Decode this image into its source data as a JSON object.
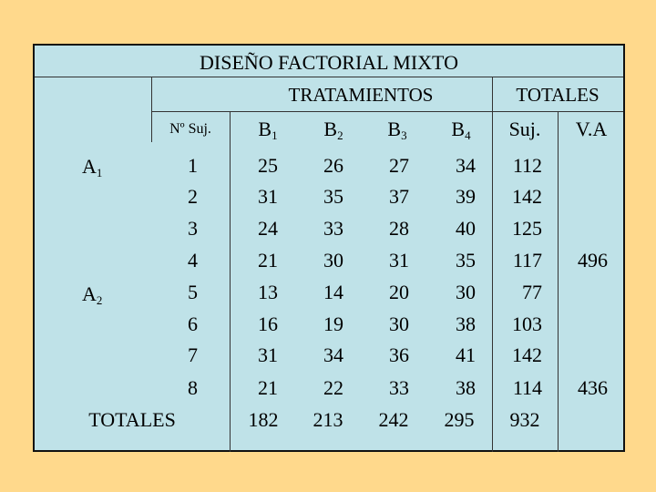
{
  "title": "DISEÑO FACTORIAL MIXTO",
  "group_header": "TRATAMIENTOS",
  "totals_header": "TOTALES",
  "subject_col_label": "Nº Suj.",
  "treatments": [
    {
      "base": "B",
      "sub": "1"
    },
    {
      "base": "B",
      "sub": "2"
    },
    {
      "base": "B",
      "sub": "3"
    },
    {
      "base": "B",
      "sub": "4"
    }
  ],
  "totals_cols": [
    "Suj.",
    "V.A"
  ],
  "groups": [
    {
      "base": "A",
      "sub": "1"
    },
    {
      "base": "A",
      "sub": "2"
    }
  ],
  "rows": [
    {
      "subject": "1",
      "b": [
        "25",
        "26",
        "27",
        "34"
      ],
      "suj": "112",
      "va": ""
    },
    {
      "subject": "2",
      "b": [
        "31",
        "35",
        "37",
        "39"
      ],
      "suj": "142",
      "va": ""
    },
    {
      "subject": "3",
      "b": [
        "24",
        "33",
        "28",
        "40"
      ],
      "suj": "125",
      "va": ""
    },
    {
      "subject": "4",
      "b": [
        "21",
        "30",
        "31",
        "35"
      ],
      "suj": "117",
      "va": "496"
    },
    {
      "subject": "5",
      "b": [
        "13",
        "14",
        "20",
        "30"
      ],
      "suj": "77",
      "va": ""
    },
    {
      "subject": "6",
      "b": [
        "16",
        "19",
        "30",
        "38"
      ],
      "suj": "103",
      "va": ""
    },
    {
      "subject": "7",
      "b": [
        "31",
        "34",
        "36",
        "41"
      ],
      "suj": "142",
      "va": ""
    },
    {
      "subject": "8",
      "b": [
        "21",
        "22",
        "33",
        "38"
      ],
      "suj": "114",
      "va": "436"
    }
  ],
  "totals_row": {
    "label": "TOTALES",
    "b": [
      "182",
      "213",
      "242",
      "295"
    ],
    "suj": "932"
  }
}
